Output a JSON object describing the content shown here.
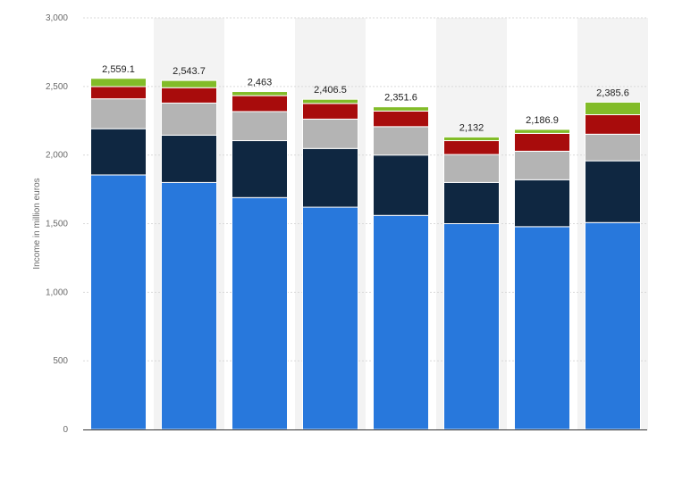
{
  "chart_data": {
    "type": "bar",
    "stacked": true,
    "title": "",
    "xlabel": "",
    "ylabel": "Income in million euros",
    "ylim": [
      0,
      3000
    ],
    "yticks": [
      0,
      500,
      1000,
      1500,
      2000,
      2500,
      3000
    ],
    "ytick_labels": [
      "0",
      "500",
      "1,000",
      "1,500",
      "2,000",
      "2,500",
      "3,000"
    ],
    "grid": true,
    "legend": "none",
    "categories": [
      "",
      "",
      "",
      "",
      "",
      "",
      "",
      ""
    ],
    "series": [
      {
        "color": "#2878dc",
        "values": [
          1855,
          1800,
          1690,
          1620,
          1560,
          1500,
          1478,
          1508
        ]
      },
      {
        "color": "#0f2741",
        "values": [
          337,
          345,
          415,
          428,
          440,
          300,
          342,
          450
        ]
      },
      {
        "color": "#b4b4b4",
        "values": [
          218,
          234,
          212,
          214,
          207,
          204,
          208,
          194
        ]
      },
      {
        "color": "#a80c0c",
        "values": [
          89,
          112,
          116,
          114,
          114,
          101,
          130,
          142
        ]
      },
      {
        "color": "#82bc28",
        "values": [
          60.1,
          52.7,
          30,
          30.5,
          30.6,
          27,
          28.9,
          91.6
        ]
      }
    ],
    "totals": [
      2559.1,
      2543.7,
      2463,
      2406.5,
      2351.6,
      2132,
      2186.9,
      2385.6
    ],
    "total_labels": [
      "2,559.1",
      "2,543.7",
      "2,463",
      "2,406.5",
      "2,351.6",
      "2,132",
      "2,186.9",
      "2,385.6"
    ]
  },
  "colors": {
    "alt_band": "#f3f3f3",
    "grid": "#d9d9d9",
    "axis": "#333333"
  }
}
